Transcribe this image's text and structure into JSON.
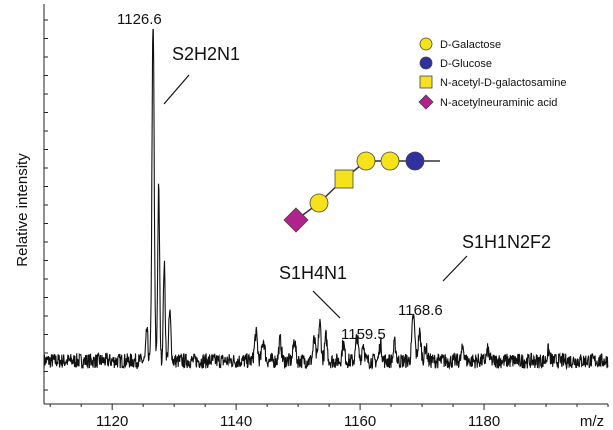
{
  "chart_data": {
    "type": "line",
    "ylabel": "Relative intensity",
    "xunit": "m/z",
    "xlim": [
      1109,
      1200
    ],
    "ylim": [
      0,
      1
    ],
    "x_ticks": [
      "1120",
      "1140",
      "1160",
      "1180"
    ],
    "x_tick_values": [
      1120,
      1140,
      1160,
      1180
    ],
    "baseline": 0.07,
    "peaks": [
      {
        "x": 1126.6,
        "y": 1.0,
        "width": 0.35
      },
      {
        "x": 1127.5,
        "y": 0.5,
        "width": 0.3
      },
      {
        "x": 1128.4,
        "y": 0.28,
        "width": 0.3
      },
      {
        "x": 1129.3,
        "y": 0.14,
        "width": 0.35
      },
      {
        "x": 1125.6,
        "y": 0.09,
        "width": 0.3
      },
      {
        "x": 1143.2,
        "y": 0.08,
        "width": 0.45
      },
      {
        "x": 1144.4,
        "y": 0.06,
        "width": 0.45
      },
      {
        "x": 1147.1,
        "y": 0.06,
        "width": 0.4
      },
      {
        "x": 1149.4,
        "y": 0.06,
        "width": 0.4
      },
      {
        "x": 1152.6,
        "y": 0.06,
        "width": 0.4
      },
      {
        "x": 1153.5,
        "y": 0.11,
        "width": 0.4
      },
      {
        "x": 1154.5,
        "y": 0.07,
        "width": 0.4
      },
      {
        "x": 1157.3,
        "y": 0.05,
        "width": 0.4
      },
      {
        "x": 1159.5,
        "y": 0.07,
        "width": 0.4
      },
      {
        "x": 1160.5,
        "y": 0.05,
        "width": 0.4
      },
      {
        "x": 1163.3,
        "y": 0.05,
        "width": 0.4
      },
      {
        "x": 1165.6,
        "y": 0.05,
        "width": 0.4
      },
      {
        "x": 1168.6,
        "y": 0.13,
        "width": 0.45
      },
      {
        "x": 1169.6,
        "y": 0.08,
        "width": 0.45
      },
      {
        "x": 1170.6,
        "y": 0.04,
        "width": 0.4
      },
      {
        "x": 1176.6,
        "y": 0.04,
        "width": 0.4
      },
      {
        "x": 1180.6,
        "y": 0.03,
        "width": 0.4
      },
      {
        "x": 1190.4,
        "y": 0.03,
        "width": 0.4
      }
    ],
    "noise": 0.022,
    "annotations": [
      {
        "text": "1126.6",
        "x": 1126.6
      },
      {
        "text": "S2H2N1",
        "x": 1130.5
      },
      {
        "text": "1159.5",
        "x": 1159.5
      },
      {
        "text": "S1H4N1",
        "x": 1155
      },
      {
        "text": "1168.6",
        "x": 1168.6
      },
      {
        "text": "S1H1N2F2",
        "x": 1174
      }
    ],
    "legend": {
      "position": "top-right",
      "items": [
        {
          "label": "D-Galactose",
          "symbol": "circle",
          "color": "#f5e21b"
        },
        {
          "label": "D-Glucose",
          "symbol": "circle",
          "color": "#3030a0"
        },
        {
          "label": "N-acetyl-D-galactosamine",
          "symbol": "square",
          "color": "#f5e21b"
        },
        {
          "label": "N-acetylneuraminic acid",
          "symbol": "diamond",
          "color": "#b0228c"
        }
      ]
    },
    "glycan": [
      "N-acetylneuraminic acid",
      "D-Galactose",
      "N-acetyl-D-galactosamine",
      "D-Galactose",
      "D-Galactose",
      "D-Glucose"
    ]
  }
}
